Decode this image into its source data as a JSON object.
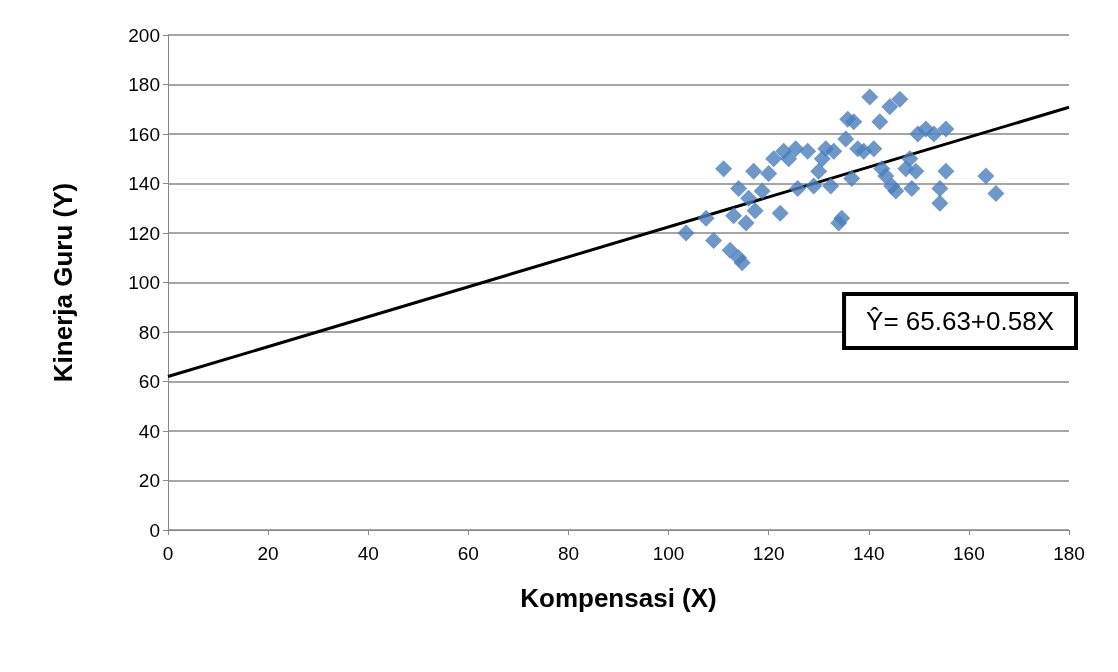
{
  "chart_data": {
    "type": "scatter",
    "xlabel": "Kompensasi (X)",
    "ylabel": "Kinerja Guru (Y)",
    "xlim": [
      0,
      180
    ],
    "xticks": [
      0,
      20,
      40,
      60,
      80,
      100,
      120,
      140,
      160,
      180
    ],
    "ylim": [
      0,
      200
    ],
    "yticks": [
      0,
      20,
      40,
      60,
      80,
      100,
      120,
      140,
      160,
      180,
      200
    ],
    "grid": "y",
    "marker": "diamond",
    "annotations": [
      "Ŷ= 65.63+0.58X"
    ],
    "series": [
      {
        "color": "#4a7ebb",
        "x": [
          103.5,
          107.5,
          109,
          111,
          112.3,
          114,
          114.7,
          113,
          114,
          116,
          117,
          115.5,
          117.3,
          118.7,
          120,
          121,
          122.3,
          123,
          124,
          125.4,
          125.8,
          127.8,
          129,
          130,
          131.4,
          132.4,
          133,
          134,
          134.6,
          135.4,
          135.8,
          137,
          136.6,
          137.8,
          140.2,
          141,
          142.2,
          142.6,
          143.4,
          144.2,
          144.6,
          145.4,
          146.2,
          147.4,
          148.2,
          148.6,
          149.4,
          149.8,
          151.4,
          153,
          154.2,
          155.4,
          154.2,
          155.4,
          163.4,
          165.4,
          130.7,
          139
        ],
        "values": [
          120,
          126,
          117,
          146,
          113,
          110,
          108,
          127,
          138,
          134,
          145,
          124,
          129,
          137,
          144,
          150,
          128,
          153,
          150,
          154,
          138,
          153,
          139,
          145,
          154,
          139,
          153,
          124,
          126,
          158,
          166,
          165,
          142,
          154,
          175,
          154,
          165,
          146,
          143,
          171,
          139,
          137,
          174,
          146,
          150,
          138,
          145,
          160,
          162,
          160,
          138,
          162,
          132,
          145,
          143,
          136,
          150,
          153
        ]
      },
      {
        "type": "line",
        "color": "#000000",
        "marker": "none",
        "x": [
          0,
          180
        ],
        "values": [
          62,
          170.8
        ]
      }
    ]
  }
}
